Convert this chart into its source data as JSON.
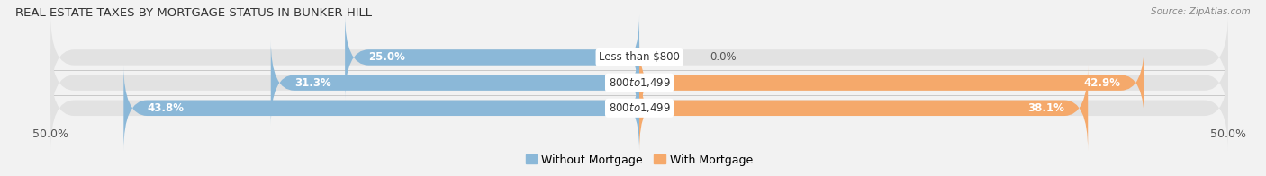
{
  "title": "REAL ESTATE TAXES BY MORTGAGE STATUS IN BUNKER HILL",
  "source": "Source: ZipAtlas.com",
  "rows": [
    {
      "label": "Less than $800",
      "without_mortgage": 25.0,
      "with_mortgage": 0.0
    },
    {
      "label": "$800 to $1,499",
      "without_mortgage": 31.3,
      "with_mortgage": 42.9
    },
    {
      "label": "$800 to $1,499",
      "without_mortgage": 43.8,
      "with_mortgage": 38.1
    }
  ],
  "xlim": [
    -50,
    50
  ],
  "color_without": "#8BB8D8",
  "color_with": "#F5A96B",
  "bg_color": "#F2F2F2",
  "bar_bg_color": "#E2E2E2",
  "legend_label_without": "Without Mortgage",
  "legend_label_with": "With Mortgage",
  "title_fontsize": 9.5,
  "tick_fontsize": 9,
  "label_fontsize": 8.5,
  "value_fontsize": 8.5,
  "bar_height": 0.62,
  "inside_threshold": 8.0
}
